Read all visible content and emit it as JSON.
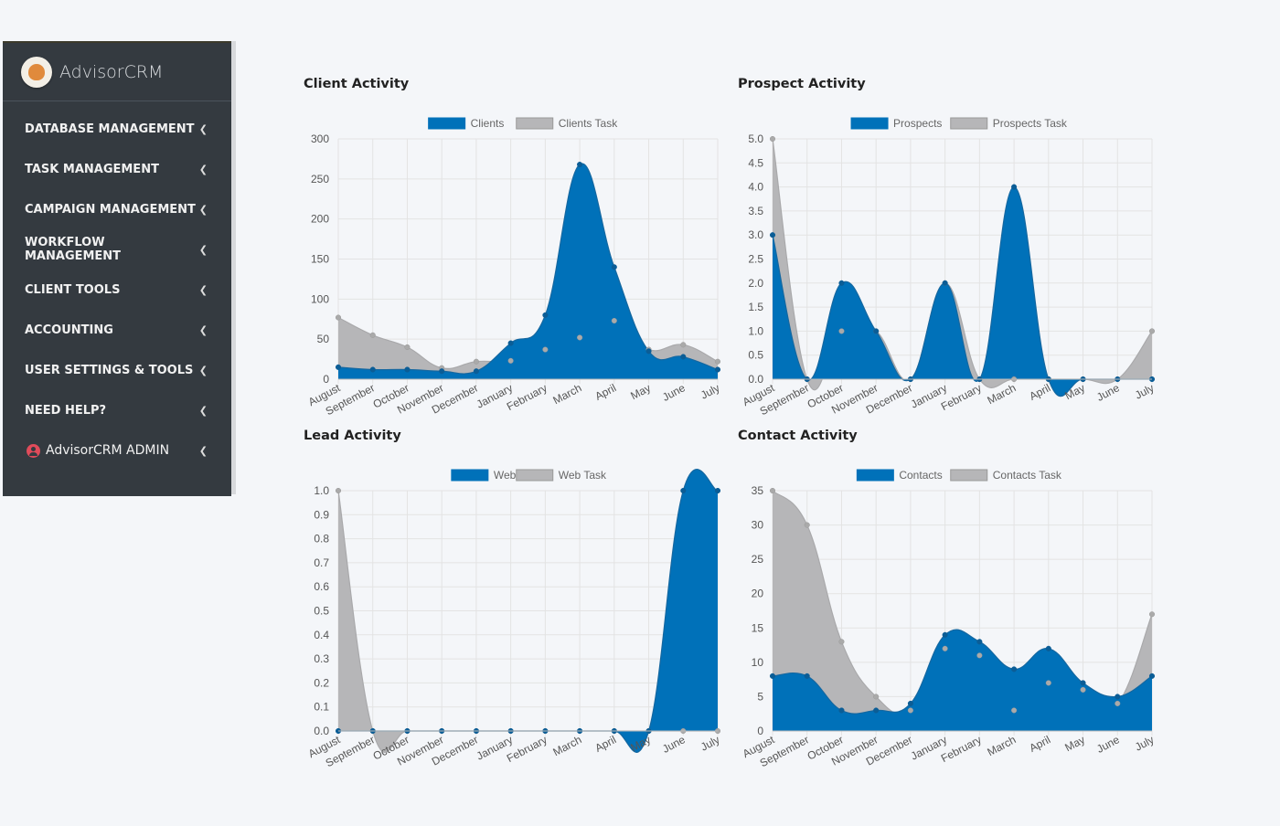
{
  "sidebar": {
    "brand": "AdvisorCRM",
    "items": [
      {
        "label": "DATABASE MANAGEMENT"
      },
      {
        "label": "TASK MANAGEMENT"
      },
      {
        "label": "CAMPAIGN MANAGEMENT"
      },
      {
        "label": "WORKFLOW MANAGEMENT"
      },
      {
        "label": "CLIENT TOOLS"
      },
      {
        "label": "ACCOUNTING"
      },
      {
        "label": "USER SETTINGS & TOOLS"
      },
      {
        "label": "NEED HELP?"
      }
    ],
    "admin": "AdvisorCRM ADMIN"
  },
  "colors": {
    "primary": "#0071b9",
    "task": "#b6b6b8",
    "grid": "#e3e3e3"
  },
  "chart_data": [
    {
      "type": "area",
      "title": "Client Activity",
      "categories": [
        "August",
        "September",
        "October",
        "November",
        "December",
        "January",
        "February",
        "March",
        "April",
        "May",
        "June",
        "July"
      ],
      "ylim": [
        0,
        300
      ],
      "yticks": [
        0,
        50,
        100,
        150,
        200,
        250,
        300
      ],
      "tick_format": "int",
      "series": [
        {
          "name": "Clients",
          "values": [
            15,
            12,
            12,
            10,
            10,
            45,
            80,
            268,
            140,
            35,
            28,
            12
          ]
        },
        {
          "name": "Clients Task",
          "values": [
            77,
            55,
            40,
            14,
            22,
            23,
            37,
            52,
            73,
            37,
            43,
            22
          ]
        }
      ],
      "legend": "top-center",
      "grid": true
    },
    {
      "type": "area",
      "title": "Prospect Activity",
      "categories": [
        "August",
        "September",
        "October",
        "November",
        "December",
        "January",
        "February",
        "March",
        "April",
        "May",
        "June",
        "July"
      ],
      "ylim": [
        0,
        5
      ],
      "yticks": [
        0,
        0.5,
        1,
        1.5,
        2,
        2.5,
        3,
        3.5,
        4,
        4.5,
        5
      ],
      "tick_format": "1dp",
      "series": [
        {
          "name": "Prospects",
          "values": [
            3,
            0,
            2,
            1,
            0,
            2,
            0,
            4,
            0,
            0,
            0,
            0
          ]
        },
        {
          "name": "Prospects Task",
          "values": [
            5,
            0,
            1,
            1,
            0,
            2,
            0,
            0,
            0,
            0,
            0,
            1
          ]
        }
      ],
      "legend": "top-center",
      "grid": true
    },
    {
      "type": "area",
      "title": "Lead Activity",
      "categories": [
        "August",
        "September",
        "October",
        "November",
        "December",
        "January",
        "February",
        "March",
        "April",
        "May",
        "June",
        "July"
      ],
      "ylim": [
        0,
        1
      ],
      "yticks": [
        0,
        0.1,
        0.2,
        0.3,
        0.4,
        0.5,
        0.6,
        0.7,
        0.8,
        0.9,
        1
      ],
      "tick_format": "1dp",
      "series": [
        {
          "name": "Web",
          "values": [
            0,
            0,
            0,
            0,
            0,
            0,
            0,
            0,
            0,
            0,
            1,
            1
          ]
        },
        {
          "name": "Web Task",
          "values": [
            1,
            0,
            0,
            0,
            0,
            0,
            0,
            0,
            0,
            0,
            0,
            0
          ]
        }
      ],
      "legend": "top-center",
      "grid": true
    },
    {
      "type": "area",
      "title": "Contact Activity",
      "categories": [
        "August",
        "September",
        "October",
        "November",
        "December",
        "January",
        "February",
        "March",
        "April",
        "May",
        "June",
        "July"
      ],
      "ylim": [
        0,
        35
      ],
      "yticks": [
        0,
        5,
        10,
        15,
        20,
        25,
        30,
        35
      ],
      "tick_format": "int",
      "series": [
        {
          "name": "Contacts",
          "values": [
            8,
            8,
            3,
            3,
            4,
            14,
            13,
            9,
            12,
            7,
            5,
            8
          ]
        },
        {
          "name": "Contacts Task",
          "values": [
            35,
            30,
            13,
            5,
            3,
            12,
            11,
            3,
            7,
            6,
            4,
            17
          ]
        }
      ],
      "legend": "top-center",
      "grid": true
    }
  ]
}
